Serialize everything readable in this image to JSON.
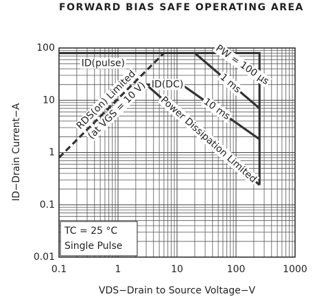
{
  "chart_data": {
    "type": "line",
    "title": "FORWARD BIAS SAFE OPERATING AREA",
    "xlabel": "VDS−Drain to Source Voltage−V",
    "ylabel": "ID−Drain Current−A",
    "xscale": "log",
    "yscale": "log",
    "grid": true,
    "xlim": [
      0.1,
      1000
    ],
    "ylim": [
      0.01,
      100
    ],
    "xticks": [
      0.1,
      1,
      10,
      100,
      1000
    ],
    "yticks": [
      0.01,
      0.1,
      1,
      10,
      100
    ],
    "annotations": [
      "TC = 25 °C",
      "Single Pulse"
    ],
    "series": [
      {
        "name": "ID(pulse)",
        "color": "#333333",
        "x": [
          0.1,
          250,
          250
        ],
        "values": [
          80,
          80,
          0.24
        ]
      },
      {
        "name": "PW = 100 µs",
        "color": "#333333",
        "x": [
          65,
          250
        ],
        "values": [
          80,
          28
        ]
      },
      {
        "name": "1 ms",
        "color": "#333333",
        "x": [
          20,
          250
        ],
        "values": [
          80,
          7
        ]
      },
      {
        "name": "10 ms",
        "color": "#333333",
        "x": [
          12,
          250
        ],
        "values": [
          20,
          1.8
        ]
      },
      {
        "name": "ID(DC)",
        "color": "#333333",
        "x": [
          3,
          12
        ],
        "values": [
          20,
          20
        ]
      },
      {
        "name": "Power Dissipation Limited",
        "color": "#333333",
        "x": [
          3,
          250
        ],
        "values": [
          20,
          0.24
        ]
      },
      {
        "name": "RDS(on) Limited",
        "note": "(at VGS = 10 V)",
        "color": "#333333",
        "style": "dashed",
        "x": [
          0.1,
          6
        ],
        "values": [
          0.8,
          80
        ]
      }
    ]
  }
}
